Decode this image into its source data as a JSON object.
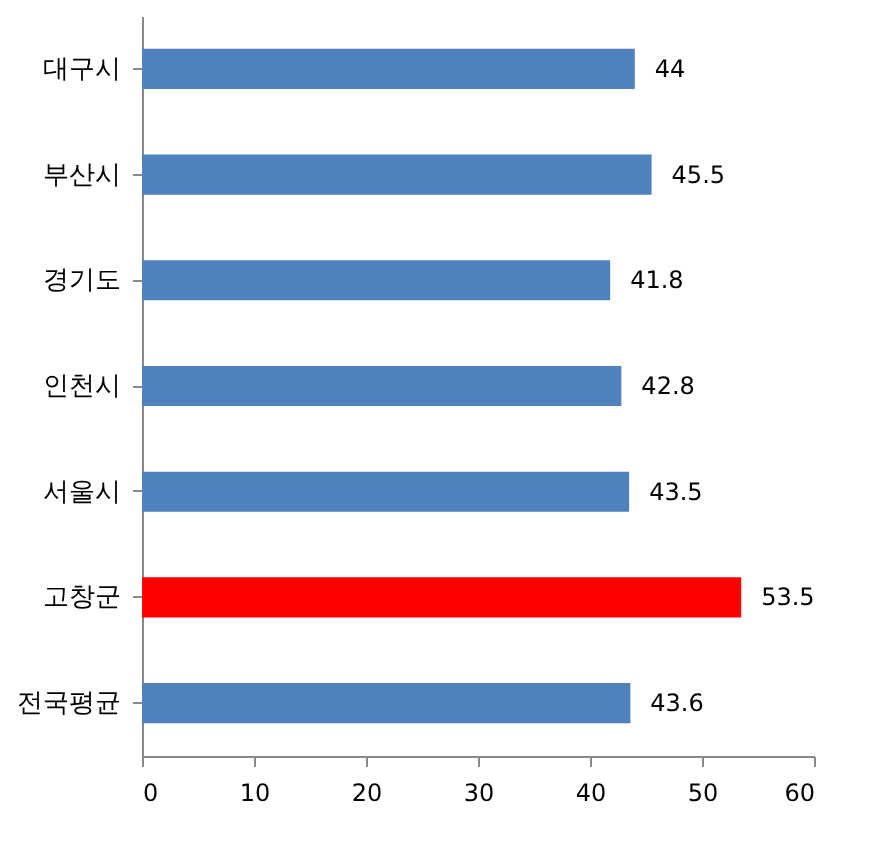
{
  "chart_data": {
    "type": "bar",
    "orientation": "horizontal",
    "categories": [
      "대구시",
      "부산시",
      "경기도",
      "인천시",
      "서울시",
      "고창군",
      "전국평균"
    ],
    "values": [
      44,
      45.5,
      41.8,
      42.8,
      43.5,
      53.5,
      43.6
    ],
    "colors": [
      "#4f81bd",
      "#4f81bd",
      "#4f81bd",
      "#4f81bd",
      "#4f81bd",
      "#ff0000",
      "#4f81bd"
    ],
    "xlim": [
      0,
      60
    ],
    "xticks": [
      0,
      10,
      20,
      30,
      40,
      50,
      60
    ],
    "data_labels": true,
    "grid": false,
    "legend": false
  }
}
